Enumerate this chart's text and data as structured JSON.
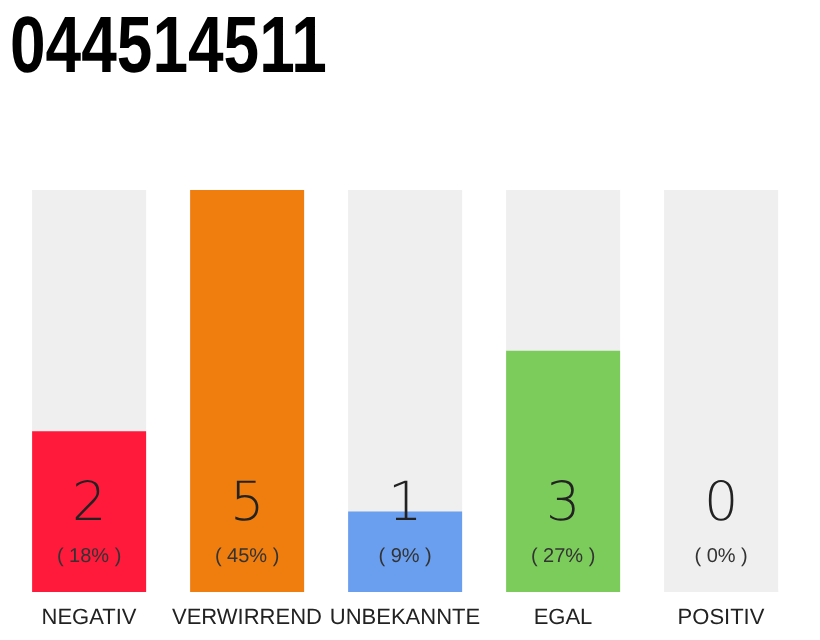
{
  "chart_data": {
    "type": "bar",
    "title": "044514511",
    "categories": [
      "NEGATIV",
      "VERWIRREND",
      "UNBEKANNTE",
      "EGAL",
      "POSITIV"
    ],
    "values": [
      2,
      5,
      1,
      3,
      0
    ],
    "colors": [
      "#ff1a3c",
      "#f07e0e",
      "#6a9ff0",
      "#7ccc5c",
      "#efefef"
    ],
    "data_labels": true,
    "annotations": [
      "( 18% )",
      "( 45% )",
      "( 9% )",
      "( 27% )",
      "( 0% )"
    ],
    "tick_labels": "x"
  }
}
